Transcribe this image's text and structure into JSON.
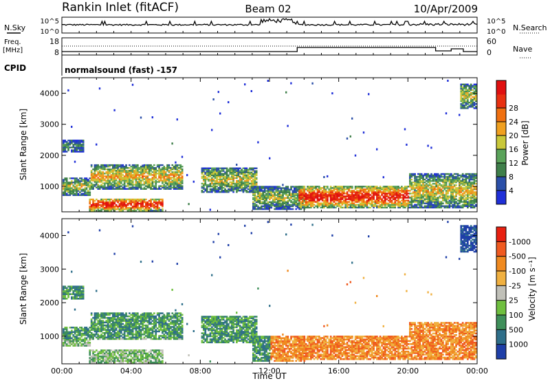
{
  "header": {
    "station": "Rankin Inlet (fitACF)",
    "beam": "Beam 02",
    "date": "10/Apr/2009"
  },
  "status_panel": {
    "left_label_1": "N.Sky",
    "left_tick_top": "10^5",
    "left_tick_bottom": "10^0",
    "right_tick_top": "10^5",
    "right_tick_bottom": "10^0",
    "right_label_1": "N.Search",
    "freq_label_1": "Freq.",
    "freq_label_2": "[MHz]",
    "freq_tick_top": "18",
    "freq_tick_bottom": "8",
    "nave_tick_top": "60",
    "nave_tick_bottom": "0",
    "nave_label": "Nave",
    "cpid_label": "CPID",
    "cpid_value": "normalsound (fast) -157"
  },
  "legend_power": {
    "title": "Power [dB]",
    "ticks": [
      "4",
      "8",
      "12",
      "16",
      "20",
      "24",
      "28"
    ],
    "colors": [
      "#1f2fd8",
      "#2b4fa8",
      "#3f7f4a",
      "#5aa35a",
      "#c9c83a",
      "#f0a020",
      "#f07010",
      "#e83010",
      "#e01010"
    ]
  },
  "legend_velocity": {
    "title": "Velocity [m s⁻¹]",
    "ticks": [
      "1000",
      "500",
      "100",
      "25",
      "-25",
      "-100",
      "-500",
      "-1000"
    ],
    "colors": [
      "#1f3fa8",
      "#2f6f8a",
      "#3f8f5a",
      "#6fbf3f",
      "#c0c0b8",
      "#f0b040",
      "#f08a20",
      "#f05a20",
      "#e82010"
    ]
  },
  "chart_data": [
    {
      "type": "heatmap",
      "title": "Power",
      "ylabel": "Slant Range [km]",
      "xlabel": "",
      "ylim": [
        180,
        4500
      ],
      "y_ticks": [
        "1000",
        "2000",
        "3000",
        "4000"
      ],
      "x_ticks": [
        "00:00",
        "04:00",
        "08:00",
        "12:00",
        "16:00",
        "20:00",
        "00:00"
      ],
      "colorbar_label": "Power [dB]",
      "colorbar_ticks": [
        4,
        8,
        12,
        16,
        20,
        24,
        28
      ]
    },
    {
      "type": "heatmap",
      "title": "Velocity",
      "ylabel": "Slant Range [km]",
      "xlabel": "Time UT",
      "ylim": [
        180,
        4500
      ],
      "y_ticks": [
        "1000",
        "2000",
        "3000",
        "4000"
      ],
      "x_ticks": [
        "00:00",
        "04:00",
        "08:00",
        "12:00",
        "16:00",
        "20:00",
        "00:00"
      ],
      "colorbar_label": "Velocity [m s⁻¹]",
      "colorbar_ticks": [
        1000,
        500,
        100,
        25,
        -25,
        -100,
        -500,
        -1000
      ]
    }
  ]
}
